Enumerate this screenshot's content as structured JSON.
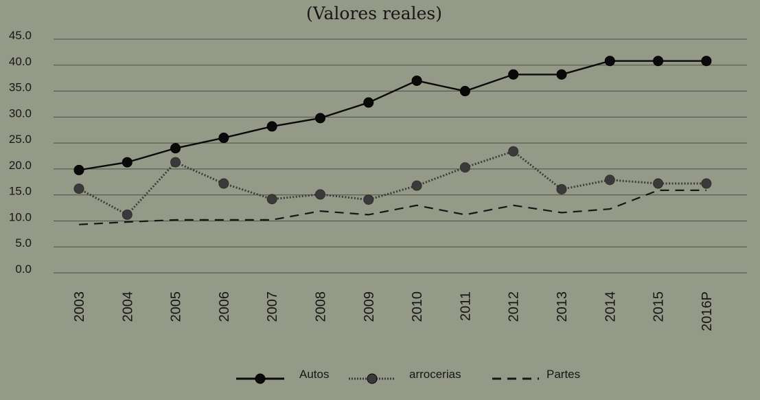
{
  "chart_data": {
    "type": "line",
    "title": "(Valores reales)",
    "xlabel": "",
    "ylabel": "",
    "categories": [
      "2003",
      "2004",
      "2005",
      "2006",
      "2007",
      "2008",
      "2009",
      "2010",
      "2011",
      "2012",
      "2013",
      "2014",
      "2015",
      "2016P"
    ],
    "ylim": [
      0,
      45
    ],
    "yticks": [
      "0.0",
      "5.0",
      "10.0",
      "15.0",
      "20.0",
      "25.0",
      "30.0",
      "35.0",
      "40.0",
      "45.0"
    ],
    "grid": "horizontal",
    "legend_position": "bottom",
    "series": [
      {
        "name": "Autos",
        "style": "solid",
        "marker": "circle",
        "color": "#0a0a0a",
        "values": [
          19.8,
          21.3,
          24.0,
          26.0,
          28.2,
          29.8,
          32.8,
          37.0,
          35.0,
          38.2,
          38.2,
          40.8,
          40.8,
          40.8
        ]
      },
      {
        "name": "arrocerias",
        "style": "dotted",
        "marker": "circle",
        "color": "#3a3a3a",
        "values": [
          16.2,
          11.2,
          21.3,
          17.2,
          14.2,
          15.1,
          14.1,
          16.8,
          20.3,
          23.4,
          16.1,
          17.9,
          17.2,
          17.2
        ]
      },
      {
        "name": "Partes",
        "style": "dashed",
        "marker": "none",
        "color": "#161616",
        "values": [
          9.3,
          9.8,
          10.2,
          10.2,
          10.2,
          11.9,
          11.2,
          13.0,
          11.2,
          13.0,
          11.6,
          12.3,
          15.9,
          15.9
        ]
      }
    ]
  }
}
